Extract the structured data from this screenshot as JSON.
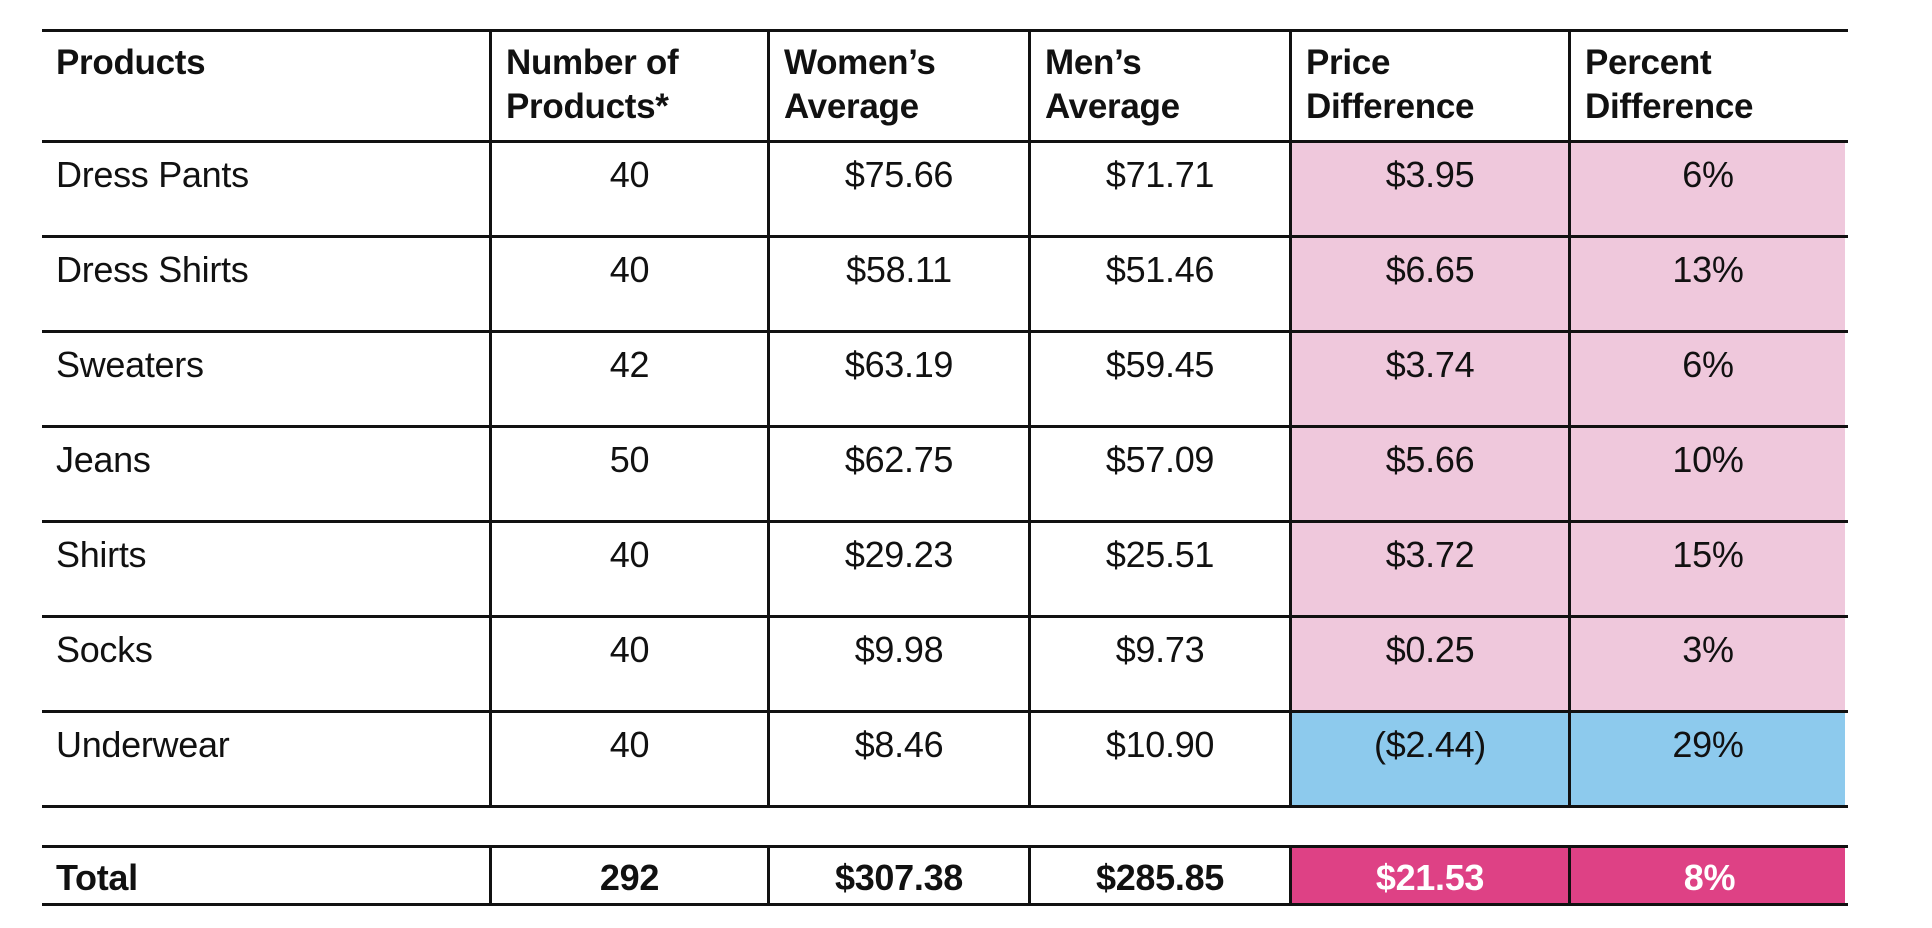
{
  "table": {
    "header": {
      "products": "Products",
      "number_line1": "Number of",
      "number_line2": "Products*",
      "womens_line1": "Women’s",
      "womens_line2": "Average",
      "mens_line1": "Men’s",
      "mens_line2": "Average",
      "price_line1": "Price",
      "price_line2": "Difference",
      "percent_line1": "Percent",
      "percent_line2": "Difference"
    },
    "rows": [
      {
        "product": "Dress Pants",
        "count": "40",
        "womens": "$75.66",
        "mens": "$71.71",
        "price_diff": "$3.95",
        "percent_diff": "6%"
      },
      {
        "product": "Dress Shirts",
        "count": "40",
        "womens": "$58.11",
        "mens": "$51.46",
        "price_diff": "$6.65",
        "percent_diff": "13%"
      },
      {
        "product": "Sweaters",
        "count": "42",
        "womens": "$63.19",
        "mens": "$59.45",
        "price_diff": "$3.74",
        "percent_diff": "6%"
      },
      {
        "product": "Jeans",
        "count": "50",
        "womens": "$62.75",
        "mens": "$57.09",
        "price_diff": "$5.66",
        "percent_diff": "10%"
      },
      {
        "product": "Shirts",
        "count": "40",
        "womens": "$29.23",
        "mens": "$25.51",
        "price_diff": "$3.72",
        "percent_diff": "15%"
      },
      {
        "product": "Socks",
        "count": "40",
        "womens": "$9.98",
        "mens": "$9.73",
        "price_diff": "$0.25",
        "percent_diff": "3%"
      },
      {
        "product": "Underwear",
        "count": "40",
        "womens": "$8.46",
        "mens": "$10.90",
        "price_diff": "($2.44)",
        "percent_diff": "29%"
      }
    ],
    "total": {
      "label": "Total",
      "count": "292",
      "womens": "$307.38",
      "mens": "$285.85",
      "price_diff": "$21.53",
      "percent_diff": "8%"
    }
  },
  "colors": {
    "women_higher": "#efc8dc",
    "men_higher": "#8dcaed",
    "total_highlight": "#de4185",
    "lines": "#111111"
  }
}
